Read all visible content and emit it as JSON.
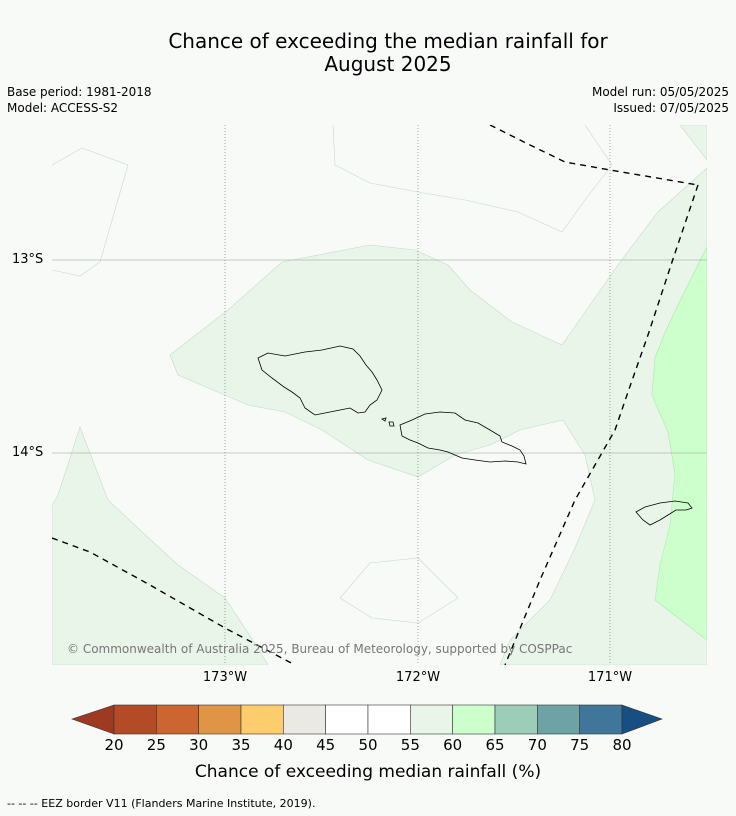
{
  "title": {
    "line1": "Chance of exceeding the median rainfall for",
    "line2": "August 2025"
  },
  "meta": {
    "base_period": "Base period: 1981-2018",
    "model": "Model: ACCESS-S2",
    "model_run": "Model run: 05/05/2025",
    "issued": "Issued: 07/05/2025"
  },
  "map": {
    "lat_labels": [
      "13°S",
      "14°S"
    ],
    "lon_labels": [
      "173°W",
      "172°W",
      "171°W"
    ],
    "copyright": "© Commonwealth of Australia 2025, Bureau of Meteorology, supported by COSPPac",
    "colors": {
      "band_45_55": "#f8faf8",
      "band_55_60": "#e9f5e9",
      "band_60_65": "#ccffcc",
      "gridline": "#888888",
      "coastline": "#000000",
      "eez": "#000000"
    }
  },
  "colorbar": {
    "title": "Chance of exceeding median rainfall (%)",
    "ticks": [
      "20",
      "25",
      "30",
      "35",
      "40",
      "45",
      "50",
      "55",
      "60",
      "65",
      "70",
      "75",
      "80"
    ],
    "low_extend_color": "#9e3a22",
    "high_extend_color": "#174f82",
    "colors": [
      "#b34b26",
      "#cd6531",
      "#e09445",
      "#fccd6a",
      "#ebe9e4",
      "#ffffff",
      "#ffffff",
      "#e9f5e9",
      "#ccffcc",
      "#9ccdb8",
      "#6ea3a6",
      "#3f7699"
    ]
  },
  "legend_note": "--  --  -- EEZ border V11 (Flanders Marine Institute, 2019)."
}
